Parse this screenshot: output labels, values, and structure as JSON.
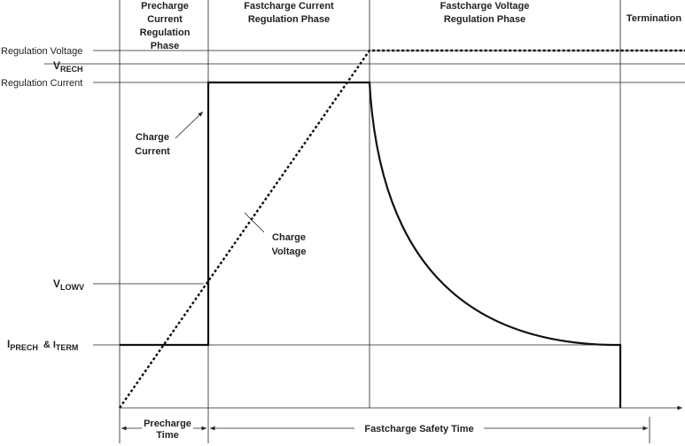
{
  "phases": [
    {
      "lines": [
        "Precharge",
        "Current",
        "Regulation",
        "Phase"
      ]
    },
    {
      "lines": [
        "Fastcharge Current",
        "Regulation Phase"
      ]
    },
    {
      "lines": [
        "Fastcharge Voltage",
        "Regulation Phase"
      ]
    },
    {
      "lines": [
        "Termination"
      ]
    }
  ],
  "levels": {
    "regulation_voltage": "Regulation Voltage",
    "vrech": {
      "main": "V",
      "sub": "RECH"
    },
    "regulation_current": "Regulation Current",
    "vlowv": {
      "main": "V",
      "sub": "LOWV"
    },
    "iprech_iterm": {
      "main1": "I",
      "sub1": "PRECH",
      "joiner": "& I",
      "sub2": "TERM"
    }
  },
  "annotations": {
    "charge_current": [
      "Charge",
      "Current"
    ],
    "charge_voltage": [
      "Charge",
      "Voltage"
    ]
  },
  "timers": {
    "precharge_time": [
      "Precharge",
      "Time"
    ],
    "fastcharge_safety_time": "Fastcharge Safety Time"
  }
}
